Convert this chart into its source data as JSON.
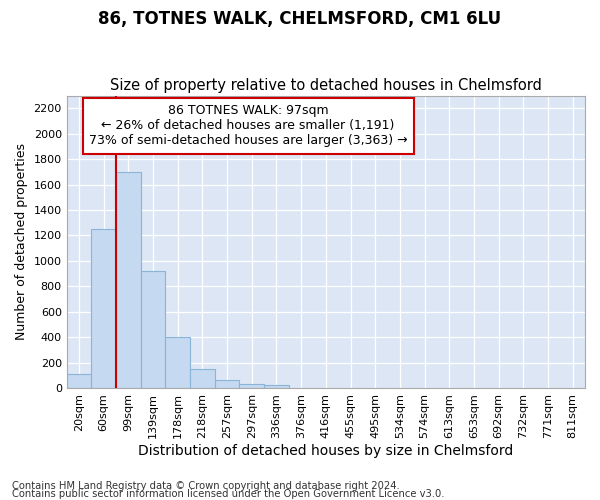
{
  "title1": "86, TOTNES WALK, CHELMSFORD, CM1 6LU",
  "title2": "Size of property relative to detached houses in Chelmsford",
  "xlabel": "Distribution of detached houses by size in Chelmsford",
  "ylabel": "Number of detached properties",
  "footnote1": "Contains HM Land Registry data © Crown copyright and database right 2024.",
  "footnote2": "Contains public sector information licensed under the Open Government Licence v3.0.",
  "categories": [
    "20sqm",
    "60sqm",
    "99sqm",
    "139sqm",
    "178sqm",
    "218sqm",
    "257sqm",
    "297sqm",
    "336sqm",
    "376sqm",
    "416sqm",
    "455sqm",
    "495sqm",
    "534sqm",
    "574sqm",
    "613sqm",
    "653sqm",
    "692sqm",
    "732sqm",
    "771sqm",
    "811sqm"
  ],
  "values": [
    110,
    1250,
    1700,
    920,
    400,
    150,
    65,
    35,
    25,
    0,
    0,
    0,
    0,
    0,
    0,
    0,
    0,
    0,
    0,
    0,
    0
  ],
  "bar_color": "#c5d9f0",
  "bar_edge_color": "#8ab4d8",
  "ylim": [
    0,
    2300
  ],
  "yticks": [
    0,
    200,
    400,
    600,
    800,
    1000,
    1200,
    1400,
    1600,
    1800,
    2000,
    2200
  ],
  "red_line_x": 2.0,
  "annotation_line1": "86 TOTNES WALK: 97sqm",
  "annotation_line2": "← 26% of detached houses are smaller (1,191)",
  "annotation_line3": "73% of semi-detached houses are larger (3,363) →",
  "annotation_box_color": "#ffffff",
  "annotation_border_color": "#cc0000",
  "plot_bg_color": "#dce6f5",
  "grid_color": "#ffffff",
  "figure_bg_color": "#ffffff",
  "title1_fontsize": 12,
  "title2_fontsize": 10.5,
  "xlabel_fontsize": 10,
  "ylabel_fontsize": 9,
  "footnote_fontsize": 7.2,
  "tick_fontsize": 8,
  "annot_fontsize": 9
}
